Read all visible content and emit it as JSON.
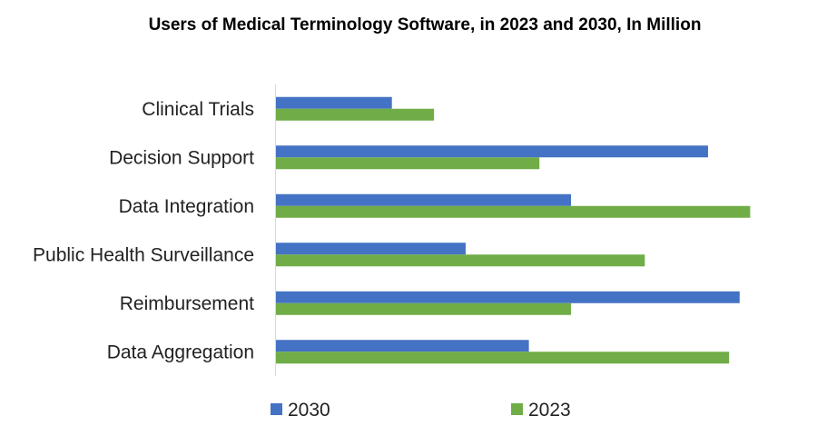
{
  "chart_data": {
    "type": "bar",
    "orientation": "horizontal",
    "title": "Users of Medical Terminology Software, in 2023 and 2030, In Million",
    "categories": [
      "Clinical Trials",
      "Decision Support",
      "Data Integration",
      "Public Health Surveillance",
      "Reimbursement",
      "Data Aggregation"
    ],
    "series": [
      {
        "name": "2030",
        "color": "#4472C4",
        "values": [
          11,
          41,
          28,
          18,
          44,
          24
        ]
      },
      {
        "name": "2023",
        "color": "#70AD47",
        "values": [
          15,
          25,
          45,
          35,
          28,
          43
        ]
      }
    ],
    "xlim": [
      0,
      46
    ],
    "grid": false,
    "legend": "bottom",
    "xaxis_labels_visible": false
  }
}
